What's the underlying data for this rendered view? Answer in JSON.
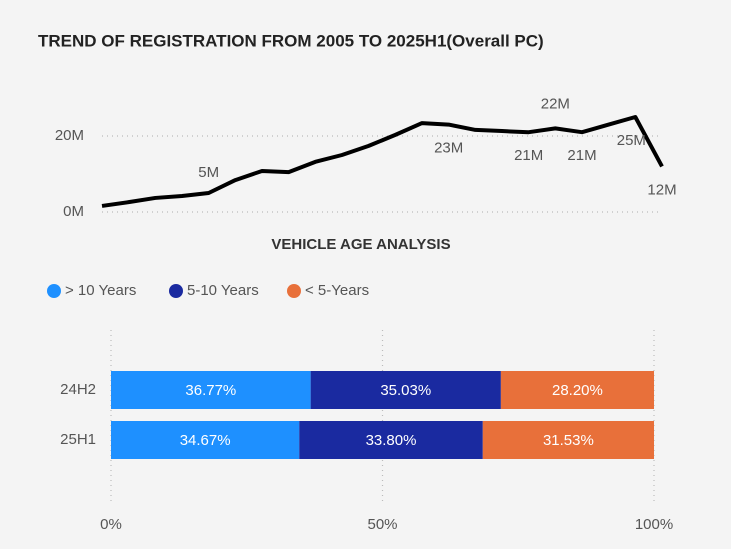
{
  "chart_data": [
    {
      "type": "line",
      "title": "TREND OF REGISTRATION FROM 2005 TO 2025H1(Overall PC)",
      "categories": [
        null,
        null,
        null,
        null,
        null,
        null,
        null,
        null,
        null,
        null,
        null,
        null,
        null,
        null,
        null,
        null,
        null,
        null,
        null,
        null,
        null,
        null
      ],
      "values": [
        1.6,
        2.6,
        3.7,
        4.2,
        5,
        8.4,
        10.8,
        10.5,
        13.2,
        15,
        17.4,
        20.3,
        23.4,
        23,
        21.6,
        21.3,
        21,
        22,
        21,
        23,
        25,
        12
      ],
      "value_labels": [
        null,
        null,
        null,
        null,
        "5M",
        null,
        null,
        null,
        null,
        null,
        null,
        null,
        null,
        "23M",
        null,
        null,
        "21M",
        "22M",
        "21M",
        null,
        "25M",
        "12M"
      ],
      "color": "#000000",
      "ylim": [
        0,
        30
      ],
      "yticks": [
        {
          "value": 0,
          "label": "0M"
        },
        {
          "value": 20,
          "label": "20M"
        }
      ],
      "grid": true
    },
    {
      "type": "stacked_barh",
      "title": "VEHICLE AGE ANALYSIS",
      "categories": [
        "24H2",
        "25H1"
      ],
      "series": [
        {
          "name": "> 10 Years",
          "color": "#1e90ff",
          "values": [
            36.77,
            34.67
          ],
          "value_labels": [
            "36.77%",
            "34.67%"
          ]
        },
        {
          "name": "5-10 Years",
          "color": "#1a2aa0",
          "values": [
            35.03,
            33.8
          ],
          "value_labels": [
            "35.03%",
            "33.80%"
          ]
        },
        {
          "name": "< 5-Years",
          "color": "#e8703a",
          "values": [
            28.2,
            31.53
          ],
          "value_labels": [
            "28.20%",
            "31.53%"
          ]
        }
      ],
      "xlim": [
        0,
        100
      ],
      "xticks": [
        {
          "value": 0,
          "label": "0%"
        },
        {
          "value": 50,
          "label": "50%"
        },
        {
          "value": 100,
          "label": "100%"
        }
      ],
      "grid": true,
      "legend": "top-left"
    }
  ]
}
